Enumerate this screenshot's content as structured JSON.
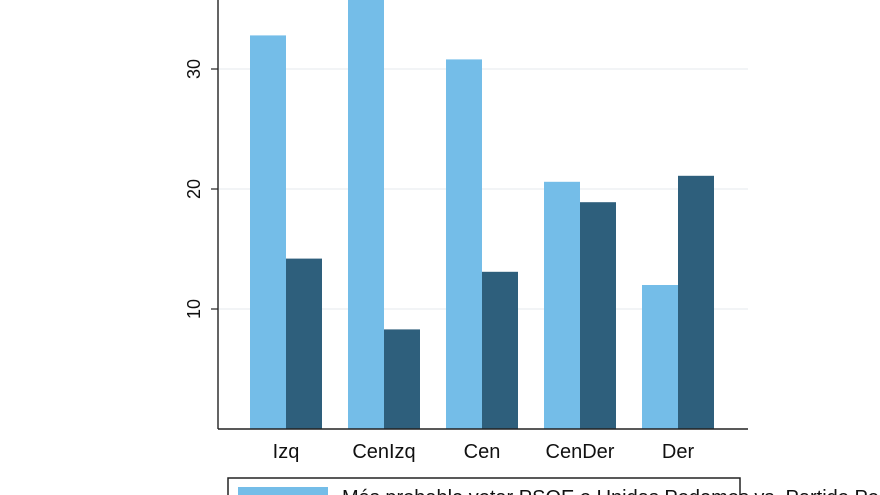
{
  "chart_data": {
    "type": "bar",
    "categories": [
      "Izq",
      "CenIzq",
      "Cen",
      "CenDer",
      "Der"
    ],
    "series": [
      {
        "name": "Más probable votar PSOE o Unidas Podemos vs. Partido Popular o Vox",
        "color": "#74bde8",
        "values": [
          32.8,
          36.0,
          30.8,
          20.6,
          12.0
        ]
      },
      {
        "color": "#2e5f7c",
        "values": [
          14.2,
          8.3,
          13.1,
          18.9,
          21.1
        ]
      }
    ],
    "y_ticks": [
      10,
      20,
      30
    ],
    "ylim": [
      0,
      36
    ],
    "grid": true,
    "legend_position": "bottom",
    "xlabel": "",
    "ylabel": ""
  }
}
